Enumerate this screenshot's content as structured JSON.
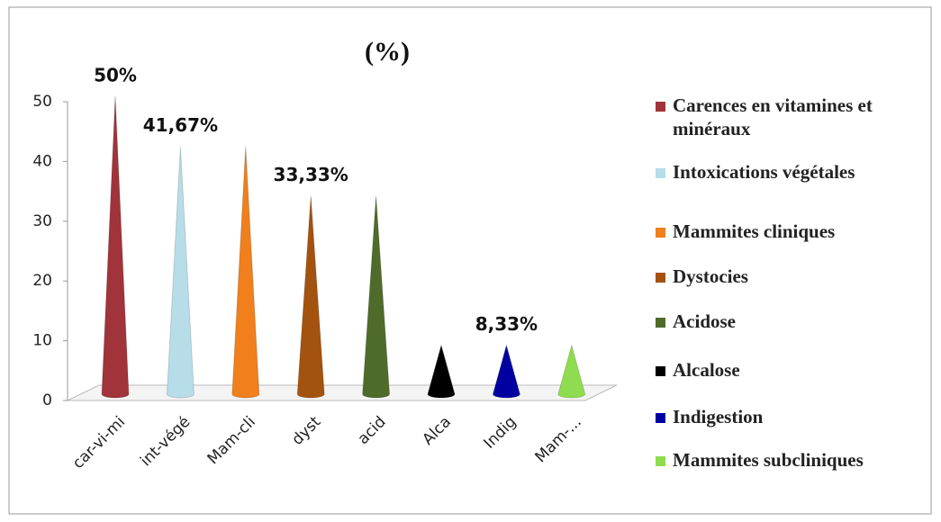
{
  "chart_data": {
    "type": "cone",
    "title": "(%)",
    "categories": [
      "car-vi-mi",
      "int-végé",
      "Mam-cli",
      "dyst",
      "acid",
      "Alca",
      "Indig",
      "Mam-..."
    ],
    "series": [
      {
        "name": "Carences en vitamines et minéraux",
        "color": "#a0343a"
      },
      {
        "name": "Intoxications végétales",
        "color": "#b7dde8"
      },
      {
        "name": "Mammites cliniques",
        "color": "#f07f1c"
      },
      {
        "name": "Dystocies",
        "color": "#a3520f"
      },
      {
        "name": "Acidose",
        "color": "#4f6b2a"
      },
      {
        "name": "Alcalose",
        "color": "#000000"
      },
      {
        "name": "Indigestion",
        "color": "#0000a0"
      },
      {
        "name": "Mammites subcliniques",
        "color": "#8fdc50"
      }
    ],
    "values": [
      50,
      41.67,
      41.67,
      33.33,
      33.33,
      8.33,
      8.33,
      8.33
    ],
    "value_labels": [
      "50%",
      "41,67%",
      null,
      "33,33%",
      null,
      null,
      "8,33%",
      null
    ],
    "ylim": [
      0,
      50
    ],
    "yticks": [
      0,
      10,
      20,
      30,
      40,
      50
    ],
    "legend": "right"
  }
}
